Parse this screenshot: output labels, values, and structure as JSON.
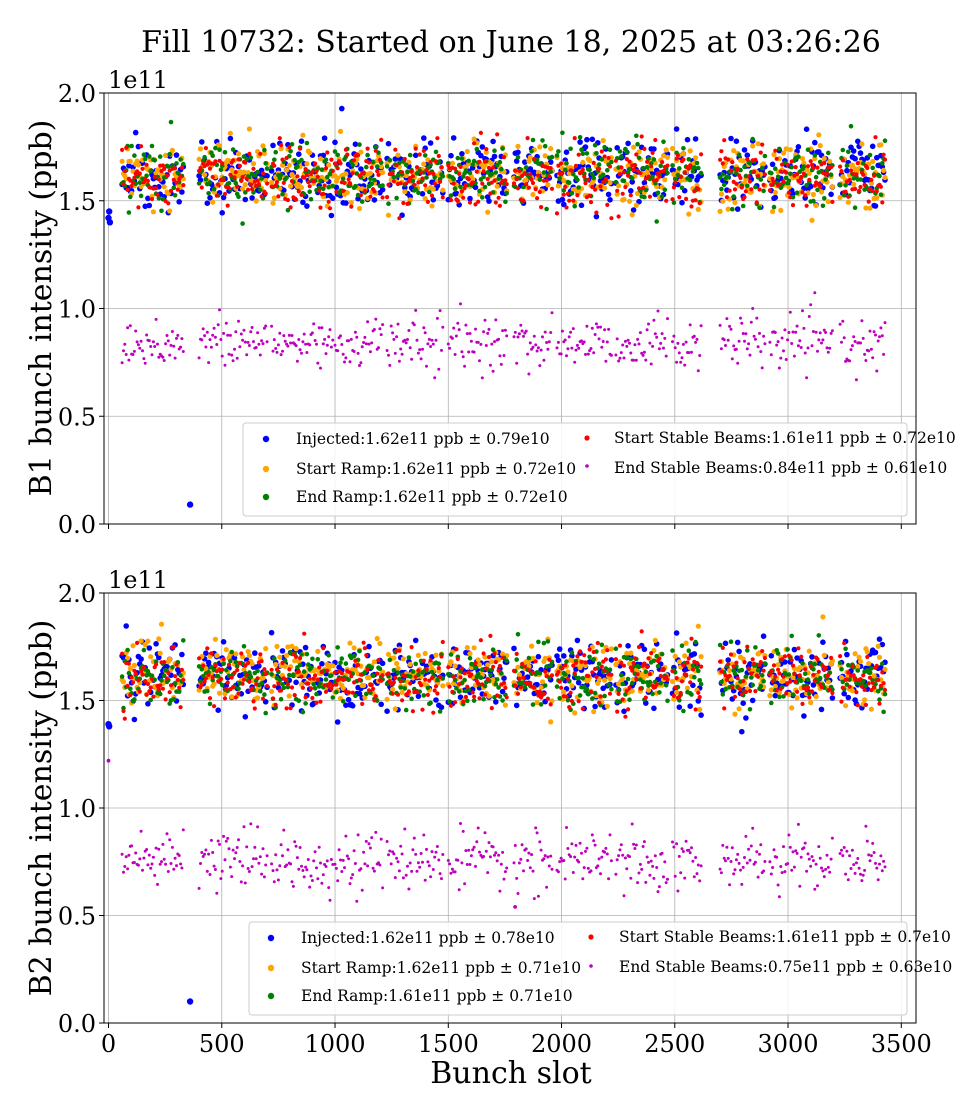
{
  "title": "Fill 10732: Started on June 18, 2025 at 03:26:26",
  "xlabel": "Bunch slot",
  "colors": {
    "injected": "#0000ff",
    "start_ramp": "#ffa500",
    "end_ramp": "#008000",
    "start_stable": "#ff0000",
    "end_stable": "#bf00bf",
    "grid": "#b0b0b0"
  },
  "chart_data": [
    {
      "type": "scatter",
      "ylabel": "B1 bunch intensity (ppb)",
      "offset_text": "1e11",
      "xlim": [
        -20,
        3565
      ],
      "ylim": [
        0.0,
        2.0
      ],
      "xticks": [
        "0",
        "500",
        "1000",
        "1500",
        "2000",
        "2500",
        "3000",
        "3500"
      ],
      "yticks": [
        "0.0",
        "0.5",
        "1.0",
        "1.5",
        "2.0"
      ],
      "grid": true,
      "legend_placement": "lower-right",
      "series": [
        {
          "name": "Injected:1.62e11 ppb ± 0.79e10",
          "key": "injected",
          "mean": 1.62,
          "std": 0.079,
          "outliers": [
            [
              360,
              0.09
            ],
            [
              0,
              1.42
            ],
            [
              3,
              1.45
            ],
            [
              6,
              1.4
            ]
          ]
        },
        {
          "name": "Start Ramp:1.62e11 ppb ± 0.72e10",
          "key": "start_ramp",
          "mean": 1.62,
          "std": 0.072
        },
        {
          "name": "End Ramp:1.62e11 ppb ± 0.72e10",
          "key": "end_ramp",
          "mean": 1.62,
          "std": 0.072
        },
        {
          "name": "Start Stable Beams:1.61e11 ppb ± 0.72e10",
          "key": "start_stable",
          "mean": 1.61,
          "std": 0.072
        },
        {
          "name": "End Stable Beams:0.84e11 ppb ± 0.61e10",
          "key": "end_stable",
          "mean": 0.84,
          "std": 0.061
        }
      ]
    },
    {
      "type": "scatter",
      "ylabel": "B2 bunch intensity (ppb)",
      "offset_text": "1e11",
      "xlim": [
        -20,
        3565
      ],
      "ylim": [
        0.0,
        2.0
      ],
      "xticks": [
        "0",
        "500",
        "1000",
        "1500",
        "2000",
        "2500",
        "3000",
        "3500"
      ],
      "yticks": [
        "0.0",
        "0.5",
        "1.0",
        "1.5",
        "2.0"
      ],
      "grid": true,
      "legend_placement": "lower-right",
      "series": [
        {
          "name": "Injected:1.62e11 ppb ± 0.78e10",
          "key": "injected",
          "mean": 1.62,
          "std": 0.078,
          "outliers": [
            [
              360,
              0.1
            ],
            [
              0,
              1.39
            ],
            [
              3,
              1.38
            ]
          ]
        },
        {
          "name": "Start Ramp:1.62e11 ppb ± 0.71e10",
          "key": "start_ramp",
          "mean": 1.62,
          "std": 0.071
        },
        {
          "name": "End Ramp:1.61e11 ppb ± 0.71e10",
          "key": "end_ramp",
          "mean": 1.61,
          "std": 0.071
        },
        {
          "name": "Start Stable Beams:1.61e11 ppb ± 0.7e10",
          "key": "start_stable",
          "mean": 1.61,
          "std": 0.07
        },
        {
          "name": "End Stable Beams:0.75e11 ppb ± 0.63e10",
          "key": "end_stable",
          "mean": 0.75,
          "std": 0.063,
          "outliers": [
            [
              0,
              1.22
            ],
            [
              1795,
              0.54
            ]
          ]
        }
      ]
    }
  ]
}
